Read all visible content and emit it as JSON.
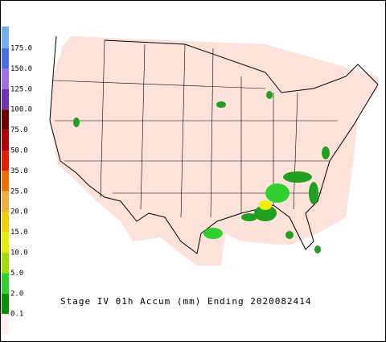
{
  "legend": {
    "labels": [
      "175.0",
      "150.0",
      "125.0",
      "100.0",
      "75.0",
      "50.0",
      "35.0",
      "25.0",
      "20.0",
      "15.0",
      "10.0",
      "5.0",
      "2.0",
      "0.1"
    ],
    "colors": [
      "#6fb0f0",
      "#4a6fe0",
      "#a070e0",
      "#7030b0",
      "#700000",
      "#b00000",
      "#e02000",
      "#f07000",
      "#f0b040",
      "#f0d000",
      "#e0f000",
      "#a0e000",
      "#30d030",
      "#009000",
      "#fff0ee"
    ]
  },
  "caption": "Stage IV 01h Accum (mm) Ending 2020082414"
}
